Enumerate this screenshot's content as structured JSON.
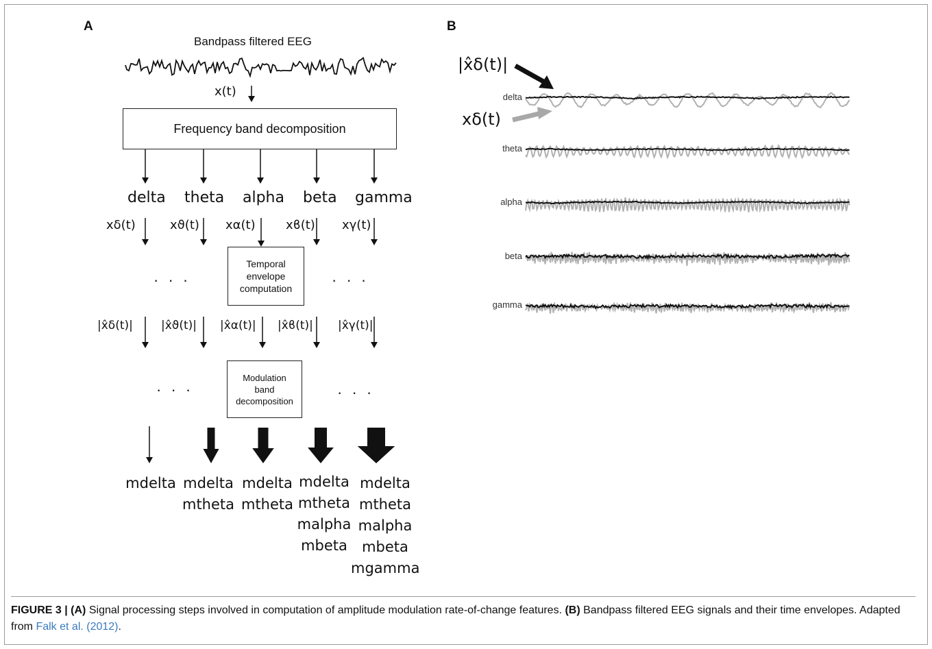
{
  "panel_a": {
    "letter": "A",
    "input_title": "Bandpass filtered EEG",
    "input_signal": "x(t)",
    "freq_box": "Frequency band decomposition",
    "bands": [
      "delta",
      "theta",
      "alpha",
      "beta",
      "gamma"
    ],
    "band_signals": [
      "xδ(t)",
      "xϑ(t)",
      "xα(t)",
      "xϐ(t)",
      "xγ(t)"
    ],
    "envelope_box": [
      "Temporal",
      "envelope",
      "computation"
    ],
    "envelopes": [
      "|x̂δ(t)|",
      "|x̂ϑ(t)|",
      "|x̂α(t)|",
      "|x̂ϐ(t)|",
      "|x̂γ(t)|"
    ],
    "modulation_box": [
      "Modulation",
      "band",
      "decomposition"
    ],
    "ellipsis": "· · ·",
    "features": [
      [
        "mdelta"
      ],
      [
        "mdelta",
        "mtheta"
      ],
      [
        "mdelta",
        "mtheta"
      ],
      [
        "mdelta",
        "mtheta",
        "malpha",
        "mbeta"
      ],
      [
        "mdelta",
        "mtheta",
        "malpha",
        "mbeta",
        "mgamma"
      ]
    ]
  },
  "panel_b": {
    "letter": "B",
    "envelope_label": "|x̂δ(t)|",
    "signal_label": "xδ(t)",
    "band_labels": [
      "delta",
      "theta",
      "alpha",
      "beta",
      "gamma"
    ],
    "colors": {
      "envelope": "#111111",
      "signal": "#b0b0b0"
    }
  },
  "caption": {
    "fig": "FIGURE 3 |",
    "a_tag": "(A)",
    "a_text": " Signal processing steps involved in computation of amplitude modulation rate-of-change features. ",
    "b_tag": "(B)",
    "b_text": " Bandpass filtered EEG signals and their time envelopes. Adapted from ",
    "ref": "Falk et al. (2012)",
    "end": "."
  }
}
